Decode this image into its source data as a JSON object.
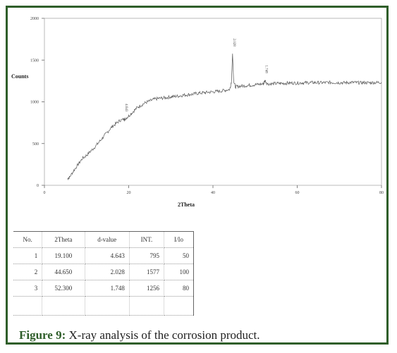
{
  "chart_data": {
    "type": "line",
    "ylabel": "Counts",
    "xlabel": "2Theta",
    "xlim": [
      0,
      80
    ],
    "ylim": [
      0,
      2000
    ],
    "xticks": [
      0,
      20,
      40,
      60,
      80
    ],
    "yticks": [
      0,
      500,
      1000,
      1500,
      2000
    ],
    "grid": false,
    "peak_labels": [
      {
        "x": 19.1,
        "y": 795,
        "label": "4.643"
      },
      {
        "x": 44.65,
        "y": 1577,
        "label": "2.028"
      },
      {
        "x": 52.3,
        "y": 1256,
        "label": "1.748"
      }
    ],
    "series": [
      {
        "x": [
          5.5,
          6,
          7,
          8,
          9,
          10,
          11,
          12,
          13,
          14,
          15,
          16,
          17,
          18,
          19,
          19.1,
          20,
          21,
          22,
          23,
          24,
          25,
          26,
          27,
          28,
          29,
          30,
          31,
          32,
          33,
          34,
          35,
          36,
          37,
          38,
          39,
          40,
          41,
          42,
          43,
          44,
          44.4,
          44.65,
          44.9,
          45.3,
          46,
          47,
          48,
          49,
          50,
          51,
          52,
          52.3,
          53,
          54,
          55,
          56,
          57,
          58,
          59,
          60,
          61,
          62,
          63,
          64,
          65,
          66,
          67,
          68,
          69,
          70,
          71,
          72,
          73,
          74,
          75,
          76,
          77,
          78,
          79,
          80
        ],
        "y": [
          80,
          100,
          180,
          250,
          320,
          360,
          410,
          460,
          520,
          580,
          640,
          700,
          740,
          780,
          790,
          795,
          830,
          880,
          930,
          960,
          990,
          1010,
          1030,
          1040,
          1045,
          1050,
          1060,
          1065,
          1070,
          1080,
          1085,
          1090,
          1100,
          1105,
          1110,
          1115,
          1120,
          1125,
          1130,
          1140,
          1150,
          1250,
          1577,
          1260,
          1180,
          1185,
          1190,
          1195,
          1200,
          1205,
          1210,
          1215,
          1256,
          1215,
          1215,
          1220,
          1220,
          1222,
          1225,
          1225,
          1225,
          1228,
          1228,
          1230,
          1230,
          1230,
          1228,
          1230,
          1232,
          1230,
          1230,
          1228,
          1230,
          1232,
          1230,
          1228,
          1230,
          1228,
          1230,
          1230,
          1235
        ]
      }
    ]
  },
  "table": {
    "headers": [
      "No.",
      "2Theta",
      "d-value",
      "INT.",
      "I/Io"
    ],
    "rows": [
      [
        "1",
        "19.100",
        "4.643",
        "795",
        "50"
      ],
      [
        "2",
        "44.650",
        "2.028",
        "1577",
        "100"
      ],
      [
        "3",
        "52.300",
        "1.748",
        "1256",
        "80"
      ]
    ]
  },
  "caption": {
    "label": "Figure 9:",
    "text": " X-ray analysis of the corrosion product."
  }
}
